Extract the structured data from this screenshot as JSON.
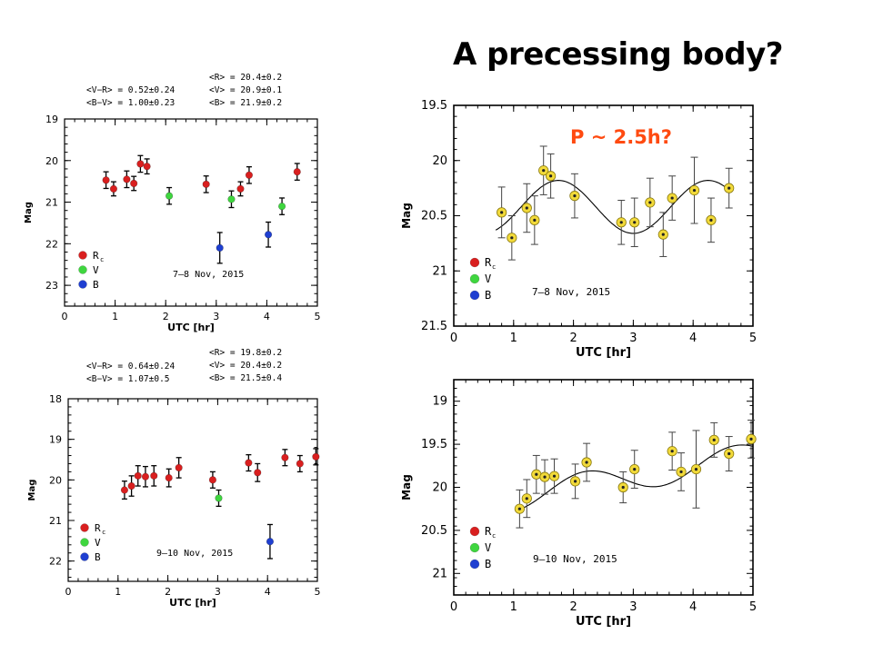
{
  "slide": {
    "title": "A precessing body?"
  },
  "colors": {
    "red": "#d91f1f",
    "green": "#3fd63f",
    "blue": "#1f3fd1",
    "yellow": "#f2da3a",
    "annotation": "#ff4a10"
  },
  "panels_info": [
    {
      "color_lines": [
        "<V−R> = 0.52±0.24",
        "<B−V> = 1.00±0.23"
      ],
      "mag_lines": [
        "<R> = 20.4±0.2",
        "<V> = 20.9±0.1",
        "<B> = 21.9±0.2"
      ]
    },
    {
      "color_lines": [
        "<V−R> = 0.64±0.24",
        "<B−V> = 1.07±0.5"
      ],
      "mag_lines": [
        "<R> = 19.8±0.2",
        "<V> = 20.4±0.2",
        "<B> = 21.5±0.4"
      ]
    }
  ],
  "chart_data": [
    {
      "type": "scatter",
      "title": "",
      "xlabel": "UTC [hr]",
      "ylabel": "Mag",
      "xlim": [
        0,
        5
      ],
      "ylim": [
        19,
        23.5
      ],
      "y_inverted": true,
      "xticks": [
        0,
        1,
        2,
        3,
        4,
        5
      ],
      "yticks": [
        19,
        20,
        21,
        22,
        23
      ],
      "date_label": "7–8 Nov, 2015",
      "legend": {
        "placement": "bottom-left",
        "entries": [
          "R",
          "V",
          "B"
        ],
        "subscript": "c"
      },
      "series": [
        {
          "name": "R",
          "color": "red",
          "points": [
            {
              "x": 0.82,
              "y": 20.47,
              "err": 0.2
            },
            {
              "x": 0.97,
              "y": 20.68,
              "err": 0.17
            },
            {
              "x": 1.23,
              "y": 20.45,
              "err": 0.2
            },
            {
              "x": 1.37,
              "y": 20.55,
              "err": 0.17
            },
            {
              "x": 1.5,
              "y": 20.08,
              "err": 0.2
            },
            {
              "x": 1.63,
              "y": 20.14,
              "err": 0.18
            },
            {
              "x": 2.8,
              "y": 20.57,
              "err": 0.2
            },
            {
              "x": 3.48,
              "y": 20.68,
              "err": 0.17
            },
            {
              "x": 3.65,
              "y": 20.35,
              "err": 0.2
            },
            {
              "x": 4.6,
              "y": 20.27,
              "err": 0.2
            }
          ]
        },
        {
          "name": "V",
          "color": "green",
          "points": [
            {
              "x": 2.07,
              "y": 20.85,
              "err": 0.2
            },
            {
              "x": 3.3,
              "y": 20.93,
              "err": 0.2
            },
            {
              "x": 4.3,
              "y": 21.1,
              "err": 0.2
            }
          ]
        },
        {
          "name": "B",
          "color": "blue",
          "points": [
            {
              "x": 3.07,
              "y": 22.1,
              "err": 0.37
            },
            {
              "x": 4.03,
              "y": 21.78,
              "err": 0.3
            }
          ]
        }
      ]
    },
    {
      "type": "scatter",
      "title": "",
      "xlabel": "UTC [hr]",
      "ylabel": "Mag",
      "xlim": [
        0,
        5
      ],
      "ylim": [
        18,
        22.5
      ],
      "y_inverted": true,
      "xticks": [
        0,
        1,
        2,
        3,
        4,
        5
      ],
      "yticks": [
        18,
        19,
        20,
        21,
        22
      ],
      "date_label": "9–10 Nov, 2015",
      "legend": {
        "placement": "bottom-left",
        "entries": [
          "R",
          "V",
          "B"
        ],
        "subscript": "c"
      },
      "series": [
        {
          "name": "R",
          "color": "red",
          "points": [
            {
              "x": 1.13,
              "y": 20.25,
              "err": 0.22
            },
            {
              "x": 1.27,
              "y": 20.15,
              "err": 0.25
            },
            {
              "x": 1.4,
              "y": 19.9,
              "err": 0.25
            },
            {
              "x": 1.55,
              "y": 19.92,
              "err": 0.25
            },
            {
              "x": 1.72,
              "y": 19.9,
              "err": 0.25
            },
            {
              "x": 2.02,
              "y": 19.95,
              "err": 0.22
            },
            {
              "x": 2.22,
              "y": 19.7,
              "err": 0.25
            },
            {
              "x": 2.9,
              "y": 20.0,
              "err": 0.2
            },
            {
              "x": 3.62,
              "y": 19.58,
              "err": 0.2
            },
            {
              "x": 3.8,
              "y": 19.82,
              "err": 0.22
            },
            {
              "x": 4.35,
              "y": 19.45,
              "err": 0.2
            },
            {
              "x": 4.65,
              "y": 19.6,
              "err": 0.2
            },
            {
              "x": 4.97,
              "y": 19.43,
              "err": 0.2
            }
          ]
        },
        {
          "name": "V",
          "color": "green",
          "points": [
            {
              "x": 3.02,
              "y": 20.45,
              "err": 0.2
            }
          ]
        },
        {
          "name": "B",
          "color": "blue",
          "points": [
            {
              "x": 4.05,
              "y": 21.52,
              "err": 0.42
            }
          ]
        }
      ]
    },
    {
      "type": "scatter",
      "title": "",
      "xlabel": "UTC [hr]",
      "ylabel": "Mag",
      "xlim": [
        0,
        5
      ],
      "ylim": [
        19.5,
        21.5
      ],
      "y_inverted": true,
      "xticks": [
        0,
        1,
        2,
        3,
        4,
        5
      ],
      "yticks": [
        19.5,
        20,
        20.5,
        21,
        21.5
      ],
      "date_label": "7–8 Nov, 2015",
      "annotation": "P ~ 2.5h?",
      "legend": {
        "placement": "bottom-left",
        "entries": [
          "R",
          "V",
          "B"
        ],
        "subscript": "c"
      },
      "fit_curve": {
        "period_hr": 2.5,
        "mean": 20.42,
        "amp": 0.24,
        "phase_min_hr": 3.0,
        "x_range": [
          0.7,
          4.6
        ]
      },
      "series": [
        {
          "name": "",
          "color": "yellow",
          "points": [
            {
              "x": 0.8,
              "y": 20.47,
              "err": 0.23
            },
            {
              "x": 0.97,
              "y": 20.7,
              "err": 0.2
            },
            {
              "x": 1.22,
              "y": 20.43,
              "err": 0.22
            },
            {
              "x": 1.35,
              "y": 20.54,
              "err": 0.22
            },
            {
              "x": 1.5,
              "y": 20.09,
              "err": 0.22
            },
            {
              "x": 1.62,
              "y": 20.14,
              "err": 0.2
            },
            {
              "x": 2.02,
              "y": 20.32,
              "err": 0.2
            },
            {
              "x": 2.8,
              "y": 20.56,
              "err": 0.2
            },
            {
              "x": 3.02,
              "y": 20.56,
              "err": 0.22
            },
            {
              "x": 3.28,
              "y": 20.38,
              "err": 0.22
            },
            {
              "x": 3.5,
              "y": 20.67,
              "err": 0.2
            },
            {
              "x": 3.65,
              "y": 20.34,
              "err": 0.2
            },
            {
              "x": 4.02,
              "y": 20.27,
              "err": 0.3
            },
            {
              "x": 4.3,
              "y": 20.54,
              "err": 0.2
            },
            {
              "x": 4.6,
              "y": 20.25,
              "err": 0.18
            }
          ]
        }
      ]
    },
    {
      "type": "scatter",
      "title": "",
      "xlabel": "UTC [hr]",
      "ylabel": "Mag",
      "xlim": [
        0,
        5
      ],
      "ylim": [
        18.75,
        21.25
      ],
      "y_inverted": true,
      "xticks": [
        0,
        1,
        2,
        3,
        4,
        5
      ],
      "yticks": [
        19,
        19.5,
        20,
        20.5,
        21
      ],
      "date_label": "9–10 Nov, 2015",
      "legend": {
        "placement": "bottom-left",
        "entries": [
          "R",
          "V",
          "B"
        ],
        "subscript": "c"
      },
      "fit_curve": {
        "period_hr": 2.5,
        "mean": 19.88,
        "amp": 0.16,
        "trend": -0.12,
        "trend_x0": 3.0,
        "phase_min_hr": 3.45,
        "x_range": [
          1.1,
          5.0
        ]
      },
      "series": [
        {
          "name": "",
          "color": "yellow",
          "points": [
            {
              "x": 1.1,
              "y": 20.25,
              "err": 0.22
            },
            {
              "x": 1.22,
              "y": 20.13,
              "err": 0.22
            },
            {
              "x": 1.38,
              "y": 19.85,
              "err": 0.22
            },
            {
              "x": 1.52,
              "y": 19.88,
              "err": 0.2
            },
            {
              "x": 1.68,
              "y": 19.87,
              "err": 0.2
            },
            {
              "x": 2.03,
              "y": 19.93,
              "err": 0.2
            },
            {
              "x": 2.22,
              "y": 19.71,
              "err": 0.22
            },
            {
              "x": 2.83,
              "y": 20.0,
              "err": 0.18
            },
            {
              "x": 3.02,
              "y": 19.79,
              "err": 0.22
            },
            {
              "x": 3.65,
              "y": 19.58,
              "err": 0.22
            },
            {
              "x": 3.8,
              "y": 19.82,
              "err": 0.22
            },
            {
              "x": 4.05,
              "y": 19.79,
              "err": 0.45
            },
            {
              "x": 4.35,
              "y": 19.45,
              "err": 0.2
            },
            {
              "x": 4.6,
              "y": 19.61,
              "err": 0.2
            },
            {
              "x": 4.97,
              "y": 19.44,
              "err": 0.22
            }
          ]
        }
      ]
    }
  ]
}
